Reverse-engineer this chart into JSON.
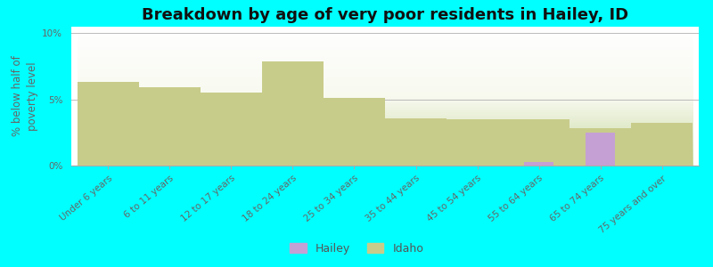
{
  "title": "Breakdown by age of very poor residents in Hailey, ID",
  "ylabel": "% below half of\npoverty level",
  "categories": [
    "Under 6 years",
    "6 to 11 years",
    "12 to 17 years",
    "18 to 24 years",
    "25 to 34 years",
    "35 to 44 years",
    "45 to 54 years",
    "55 to 64 years",
    "65 to 74 years",
    "75 years and over"
  ],
  "idaho_values": [
    6.3,
    5.9,
    5.5,
    7.9,
    5.1,
    3.6,
    3.5,
    3.5,
    2.8,
    3.2
  ],
  "hailey_values": [
    0,
    0,
    0,
    0,
    0,
    0,
    0,
    0.3,
    2.5,
    0
  ],
  "idaho_color": "#c8cc8a",
  "hailey_color": "#c4a0d4",
  "background_color": "#00ffff",
  "ylim": [
    0,
    10.5
  ],
  "yticks": [
    0,
    5,
    10
  ],
  "ytick_labels": [
    "0%",
    "5%",
    "10%"
  ],
  "bar_width": 0.55,
  "title_fontsize": 13,
  "axis_label_fontsize": 8.5,
  "tick_fontsize": 7.5,
  "legend_hailey": "Hailey",
  "legend_idaho": "Idaho"
}
